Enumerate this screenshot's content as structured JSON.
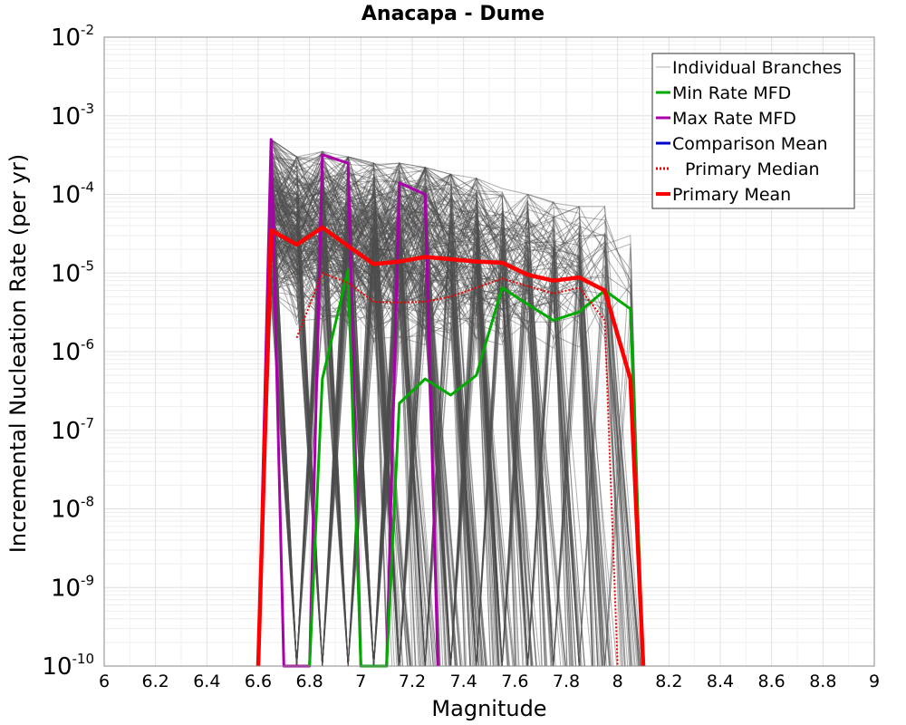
{
  "chart_data": {
    "type": "line",
    "title": "Anacapa - Dume",
    "xlabel": "Magnitude",
    "ylabel": "Incremental Nucleation Rate (per yr)",
    "xlim": [
      6,
      9
    ],
    "ylim": [
      1e-10,
      0.01
    ],
    "yscale": "log",
    "grid": true,
    "legend_position": "top-right",
    "x_ticks": [
      "6",
      "6.2",
      "6.4",
      "6.6",
      "6.8",
      "7",
      "7.2",
      "7.4",
      "7.6",
      "7.8",
      "8",
      "8.2",
      "8.4",
      "8.6",
      "8.8",
      "9"
    ],
    "y_ticks": [
      {
        "base": "10",
        "exp": "-2"
      },
      {
        "base": "10",
        "exp": "-3"
      },
      {
        "base": "10",
        "exp": "-4"
      },
      {
        "base": "10",
        "exp": "-5"
      },
      {
        "base": "10",
        "exp": "-6"
      },
      {
        "base": "10",
        "exp": "-7"
      },
      {
        "base": "10",
        "exp": "-8"
      },
      {
        "base": "10",
        "exp": "-9"
      },
      {
        "base": "10",
        "exp": "-10"
      }
    ],
    "legend": [
      {
        "label": "Individual Branches",
        "color": "#b0b0b0",
        "style": "thin"
      },
      {
        "label": "Min Rate MFD",
        "color": "#00aa00",
        "style": "solid"
      },
      {
        "label": "Max Rate MFD",
        "color": "#aa00aa",
        "style": "solid"
      },
      {
        "label": "Comparison Mean",
        "color": "#0000cc",
        "style": "solid"
      },
      {
        "label": "Primary Median",
        "color": "#ee0000",
        "style": "dotted"
      },
      {
        "label": "Primary Mean",
        "color": "#ff0000",
        "style": "thick"
      }
    ],
    "branch_envelope": {
      "x": [
        6.65,
        6.75,
        6.85,
        6.95,
        7.05,
        7.15,
        7.25,
        7.35,
        7.45,
        7.55,
        7.65,
        7.75,
        7.85,
        7.95,
        8.05
      ],
      "upper": [
        0.0005,
        0.0003,
        0.00035,
        0.0003,
        0.00025,
        0.00025,
        0.00022,
        0.00018,
        0.00016,
        0.00012,
        0.0001,
        8e-05,
        7e-05,
        7e-05,
        3e-05
      ],
      "lower": [
        3e-06,
        2e-06,
        2e-06,
        1.5e-06,
        1.2e-06,
        1e-06,
        1e-06,
        1e-06,
        1e-06,
        1e-06,
        1e-06,
        1e-06,
        1e-06,
        1e-06,
        1e-06
      ]
    },
    "series": [
      {
        "name": "Max Rate MFD",
        "color": "#aa00aa",
        "x": [
          6.6,
          6.65,
          6.7,
          6.8,
          6.85,
          6.95,
          7.0,
          7.1,
          7.15,
          7.25,
          7.3
        ],
        "values": [
          1e-10,
          0.0005,
          1e-10,
          1e-10,
          0.00032,
          0.00025,
          1e-10,
          1e-10,
          0.00014,
          0.0001,
          1e-10
        ]
      },
      {
        "name": "Min Rate MFD",
        "color": "#00aa00",
        "x": [
          6.8,
          6.85,
          6.95,
          7.0,
          7.1,
          7.15,
          7.25,
          7.35,
          7.45,
          7.55,
          7.65,
          7.75,
          7.85,
          7.95,
          8.05,
          8.1
        ],
        "values": [
          1e-10,
          4.5e-07,
          1.1e-05,
          1e-10,
          1e-10,
          2.2e-07,
          4.5e-07,
          2.8e-07,
          5e-07,
          6.5e-06,
          4e-06,
          2.5e-06,
          3.2e-06,
          6e-06,
          3.5e-06,
          1e-10
        ]
      },
      {
        "name": "Primary Median",
        "color": "#ee0000",
        "x": [
          6.75,
          6.85,
          6.95,
          7.05,
          7.15,
          7.25,
          7.35,
          7.45,
          7.55,
          7.65,
          7.75,
          7.85,
          7.95,
          8.0
        ],
        "values": [
          1.5e-06,
          1e-05,
          7.5e-06,
          4.3e-06,
          4.2e-06,
          4.3e-06,
          5e-06,
          6.5e-06,
          8.5e-06,
          6.8e-06,
          5.5e-06,
          6.5e-06,
          2.5e-06,
          1e-10
        ]
      },
      {
        "name": "Primary Mean",
        "color": "#ff0000",
        "x": [
          6.6,
          6.65,
          6.75,
          6.85,
          6.95,
          7.05,
          7.15,
          7.25,
          7.35,
          7.45,
          7.55,
          7.65,
          7.75,
          7.85,
          7.95,
          8.05,
          8.1
        ],
        "values": [
          1e-10,
          3.5e-05,
          2.3e-05,
          3.8e-05,
          2.2e-05,
          1.3e-05,
          1.4e-05,
          1.6e-05,
          1.5e-05,
          1.4e-05,
          1.35e-05,
          9.5e-06,
          8e-06,
          8.8e-06,
          6e-06,
          4.5e-07,
          1e-10
        ]
      }
    ]
  }
}
